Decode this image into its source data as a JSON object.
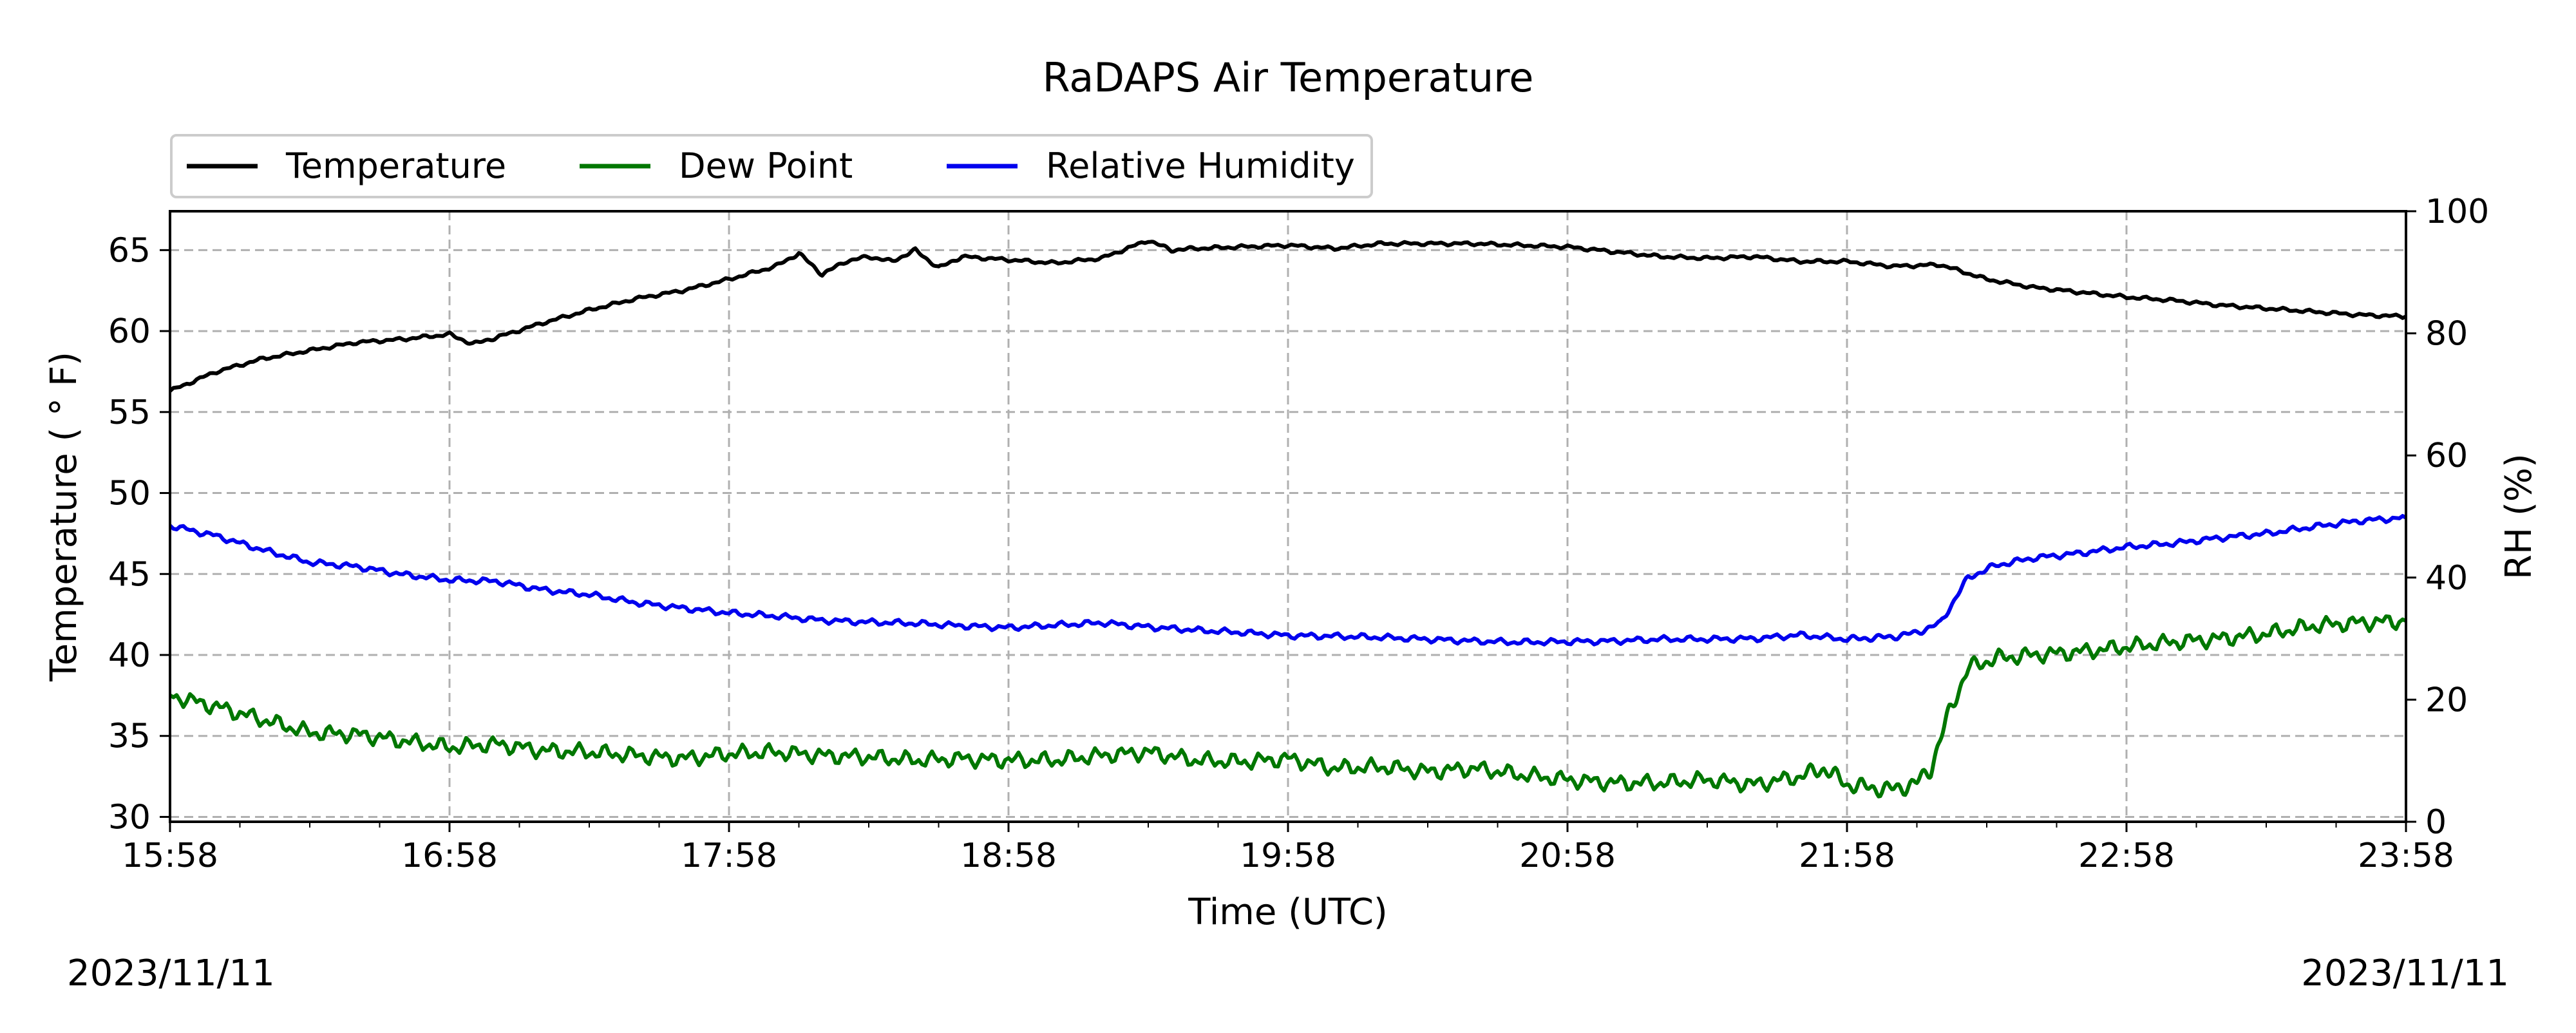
{
  "chart_data": {
    "type": "line",
    "title": "RaDAPS Air Temperature",
    "xlabel": "Time (UTC)",
    "ylabel": "Temperature ( $^\\circ$F)",
    "ylabel_display": "Temperature ( ° F)",
    "y2label": "RH (%)",
    "date_left": "2023/11/11",
    "date_right": "2023/11/11",
    "x_unit": "minutes after 15:58 UTC",
    "xlim": [
      0,
      480
    ],
    "x_ticks": [
      0,
      60,
      120,
      180,
      240,
      300,
      360,
      420,
      480
    ],
    "x_tick_labels": [
      "15:58",
      "16:58",
      "17:58",
      "18:58",
      "19:58",
      "20:58",
      "21:58",
      "22:58",
      "23:58"
    ],
    "x_minor_tick_step": 15,
    "ylim": [
      29.7,
      67.4
    ],
    "y_ticks": [
      30,
      35,
      40,
      45,
      50,
      55,
      60,
      65
    ],
    "y2lim": [
      0,
      100
    ],
    "y2_ticks": [
      0,
      20,
      40,
      60,
      80,
      100
    ],
    "grid": true,
    "legend_placement": "top-left, above plot",
    "series": [
      {
        "name": "Temperature",
        "axis": "left",
        "color": "#000000",
        "x": [
          0,
          10,
          20,
          30,
          40,
          50,
          60,
          65,
          70,
          80,
          90,
          100,
          110,
          120,
          130,
          135,
          140,
          145,
          150,
          155,
          160,
          165,
          170,
          180,
          190,
          200,
          210,
          215,
          220,
          230,
          240,
          250,
          260,
          270,
          280,
          290,
          300,
          310,
          320,
          330,
          340,
          350,
          360,
          370,
          380,
          390,
          400,
          410,
          420,
          430,
          440,
          450,
          460,
          470,
          480
        ],
        "values": [
          56.3,
          57.5,
          58.3,
          58.8,
          59.3,
          59.5,
          59.8,
          59.2,
          59.6,
          60.5,
          61.3,
          62.0,
          62.5,
          63.2,
          64.0,
          64.8,
          63.5,
          64.3,
          64.6,
          64.3,
          65.0,
          63.9,
          64.6,
          64.4,
          64.2,
          64.5,
          65.6,
          65.0,
          65.1,
          65.2,
          65.3,
          65.1,
          65.4,
          65.4,
          65.4,
          65.3,
          65.2,
          64.9,
          64.6,
          64.5,
          64.6,
          64.3,
          64.3,
          64.0,
          64.1,
          63.2,
          62.7,
          62.4,
          62.1,
          61.9,
          61.6,
          61.4,
          61.2,
          61.0,
          60.9
        ]
      },
      {
        "name": "Dew Point",
        "axis": "left",
        "color": "#007700",
        "x": [
          0,
          10,
          20,
          30,
          40,
          50,
          60,
          70,
          80,
          90,
          100,
          110,
          120,
          130,
          140,
          150,
          160,
          170,
          180,
          190,
          200,
          210,
          220,
          230,
          240,
          250,
          260,
          270,
          280,
          290,
          300,
          310,
          320,
          330,
          340,
          350,
          355,
          360,
          365,
          370,
          375,
          378,
          382,
          386,
          392,
          400,
          410,
          420,
          430,
          440,
          450,
          460,
          470,
          480
        ],
        "values": [
          37.5,
          36.8,
          36.0,
          35.2,
          35.1,
          34.7,
          34.3,
          34.5,
          34.1,
          34.0,
          33.8,
          33.6,
          33.9,
          34.0,
          33.8,
          33.7,
          33.5,
          33.6,
          33.5,
          33.5,
          33.8,
          34.0,
          33.5,
          33.4,
          33.6,
          33.0,
          33.1,
          32.8,
          33.0,
          32.6,
          32.3,
          32.1,
          32.1,
          32.3,
          32.0,
          32.5,
          33.0,
          32.0,
          31.8,
          31.7,
          32.1,
          33.0,
          36.5,
          39.2,
          39.8,
          40.0,
          40.2,
          40.5,
          40.8,
          41.0,
          41.3,
          41.8,
          42.0,
          42.1
        ]
      },
      {
        "name": "Relative Humidity",
        "axis": "right",
        "color": "#0000ee",
        "x": [
          0,
          10,
          20,
          30,
          40,
          50,
          60,
          70,
          80,
          90,
          100,
          110,
          120,
          130,
          140,
          150,
          160,
          170,
          180,
          190,
          200,
          210,
          220,
          230,
          240,
          250,
          260,
          270,
          280,
          290,
          300,
          310,
          320,
          330,
          340,
          350,
          360,
          365,
          370,
          375,
          380,
          386,
          392,
          400,
          410,
          420,
          430,
          440,
          450,
          460,
          470,
          480
        ],
        "values": [
          48.5,
          46.8,
          44.5,
          42.5,
          41.8,
          40.5,
          39.6,
          39.4,
          38.0,
          37.2,
          35.9,
          35.0,
          34.2,
          33.7,
          33.0,
          32.7,
          32.5,
          32.1,
          31.8,
          32.2,
          32.6,
          31.9,
          31.4,
          31.0,
          30.5,
          30.4,
          30.2,
          29.9,
          29.6,
          29.4,
          29.5,
          29.6,
          29.9,
          29.9,
          30.0,
          30.6,
          29.9,
          30.1,
          30.3,
          31.0,
          32.5,
          40.0,
          42.0,
          43.2,
          44.0,
          45.0,
          45.6,
          46.5,
          47.2,
          48.3,
          49.3,
          49.8
        ]
      }
    ]
  }
}
